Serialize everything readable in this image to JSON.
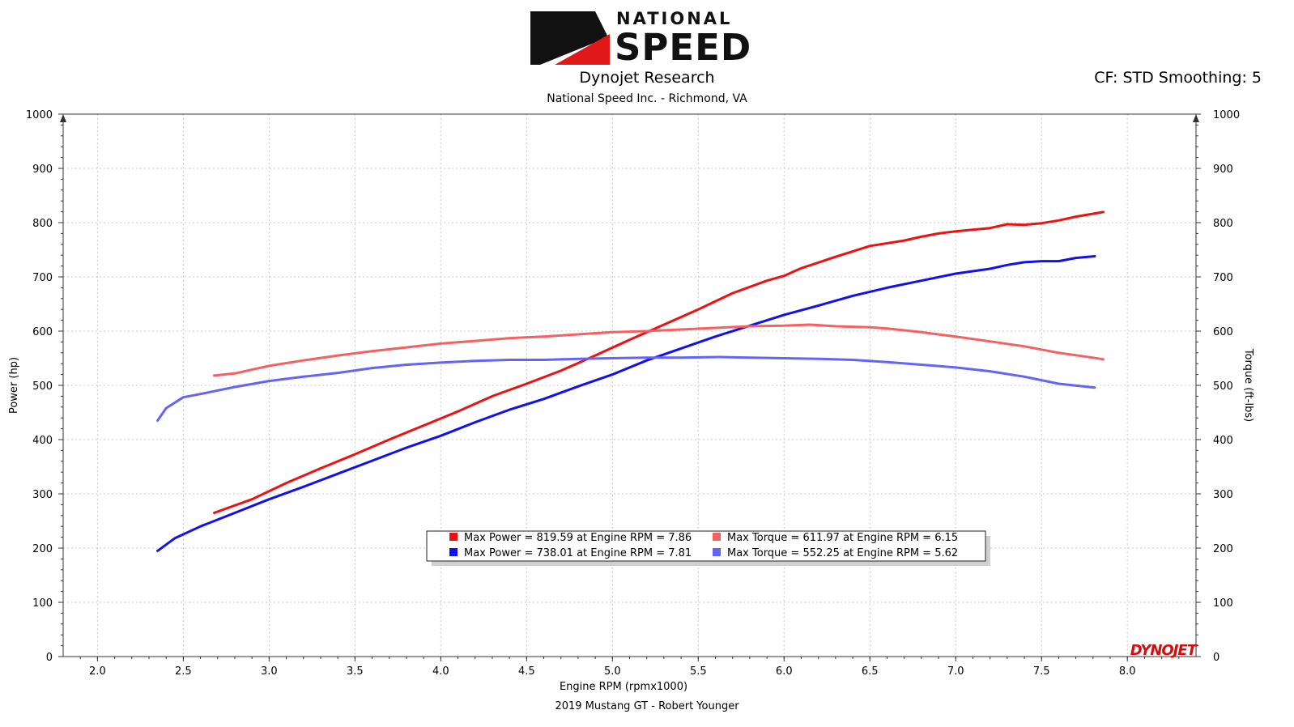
{
  "header": {
    "logo_text_top": "NATIONAL",
    "logo_text_bottom": "SPEED",
    "title": "Dynojet Research",
    "subtitle": "National Speed Inc. - Richmond, VA",
    "cf_smoothing": "CF: STD Smoothing: 5"
  },
  "footer": {
    "caption": "2019 Mustang GT - Robert Younger",
    "brand": "DYNOJET"
  },
  "colors": {
    "run1_power": "#ee1111",
    "run2_power": "#1111ee",
    "run1_torque": "#f56060",
    "run2_torque": "#6464f5",
    "grid": "#c8c8c8"
  },
  "chart_data": {
    "type": "line",
    "xlabel": "Engine RPM (rpmx1000)",
    "ylabel": "Power (hp)",
    "y2label": "Torque (ft-lbs)",
    "xlim": [
      1.8,
      8.4
    ],
    "ylim": [
      0,
      1000
    ],
    "y2lim": [
      0,
      1000
    ],
    "x_ticks": [
      "2.0",
      "2.5",
      "3.0",
      "3.5",
      "4.0",
      "4.5",
      "5.0",
      "5.5",
      "6.0",
      "6.5",
      "7.0",
      "7.5",
      "8.0"
    ],
    "y_ticks": [
      "0",
      "100",
      "200",
      "300",
      "400",
      "500",
      "600",
      "700",
      "800",
      "900",
      "1000"
    ],
    "grid": true,
    "legend_position": "lower-center",
    "series": [
      {
        "key": "run1_power",
        "legend": "Max Power = 819.59 at Engine RPM = 7.86",
        "axis": "left",
        "x": [
          2.68,
          2.9,
          3.1,
          3.3,
          3.5,
          3.7,
          3.9,
          4.1,
          4.3,
          4.5,
          4.7,
          4.9,
          5.1,
          5.3,
          5.5,
          5.7,
          5.9,
          6.0,
          6.1,
          6.3,
          6.5,
          6.7,
          6.8,
          6.9,
          7.0,
          7.1,
          7.2,
          7.3,
          7.4,
          7.5,
          7.6,
          7.7,
          7.86
        ],
        "y": [
          265,
          290,
          320,
          347,
          373,
          400,
          426,
          452,
          480,
          503,
          527,
          555,
          584,
          612,
          640,
          670,
          693,
          702,
          716,
          737,
          757,
          767,
          774,
          780,
          784,
          787,
          790,
          797,
          796,
          799,
          804,
          811,
          819.59
        ]
      },
      {
        "key": "run2_power",
        "legend": "Max Power = 738.01 at Engine RPM = 7.81",
        "axis": "left",
        "x": [
          2.35,
          2.45,
          2.6,
          2.8,
          3.0,
          3.2,
          3.4,
          3.6,
          3.8,
          4.0,
          4.2,
          4.4,
          4.6,
          4.8,
          5.0,
          5.2,
          5.4,
          5.6,
          5.8,
          6.0,
          6.2,
          6.4,
          6.6,
          6.8,
          7.0,
          7.2,
          7.3,
          7.4,
          7.5,
          7.6,
          7.7,
          7.81
        ],
        "y": [
          195,
          218,
          240,
          265,
          290,
          313,
          337,
          361,
          385,
          407,
          432,
          455,
          475,
          498,
          520,
          546,
          568,
          590,
          610,
          630,
          647,
          665,
          680,
          693,
          706,
          715,
          722,
          727,
          729,
          729,
          735,
          738.01
        ]
      },
      {
        "key": "run1_torque",
        "legend": "Max Torque = 611.97 at Engine RPM = 6.15",
        "axis": "right",
        "x": [
          2.68,
          2.8,
          3.0,
          3.2,
          3.4,
          3.6,
          3.8,
          4.0,
          4.2,
          4.4,
          4.6,
          4.8,
          5.0,
          5.2,
          5.4,
          5.6,
          5.8,
          6.0,
          6.15,
          6.3,
          6.5,
          6.6,
          6.8,
          7.0,
          7.2,
          7.4,
          7.6,
          7.8,
          7.86
        ],
        "y": [
          518,
          522,
          536,
          546,
          555,
          563,
          570,
          577,
          582,
          587,
          590,
          594,
          598,
          600,
          603,
          606,
          609,
          610,
          611.97,
          609,
          607,
          605,
          598,
          590,
          581,
          572,
          560,
          551,
          548
        ]
      },
      {
        "key": "run2_torque",
        "legend": "Max Torque = 552.25 at Engine RPM = 5.62",
        "axis": "right",
        "x": [
          2.35,
          2.4,
          2.5,
          2.6,
          2.8,
          3.0,
          3.2,
          3.4,
          3.6,
          3.8,
          4.0,
          4.2,
          4.4,
          4.6,
          4.8,
          5.0,
          5.2,
          5.4,
          5.62,
          5.8,
          6.0,
          6.2,
          6.4,
          6.6,
          6.8,
          7.0,
          7.2,
          7.4,
          7.6,
          7.81
        ],
        "y": [
          435,
          458,
          478,
          484,
          497,
          508,
          516,
          523,
          532,
          538,
          542,
          545,
          547,
          547,
          549,
          550,
          551,
          551,
          552.25,
          551,
          550,
          549,
          547,
          543,
          538,
          533,
          526,
          516,
          503,
          496
        ]
      }
    ]
  }
}
